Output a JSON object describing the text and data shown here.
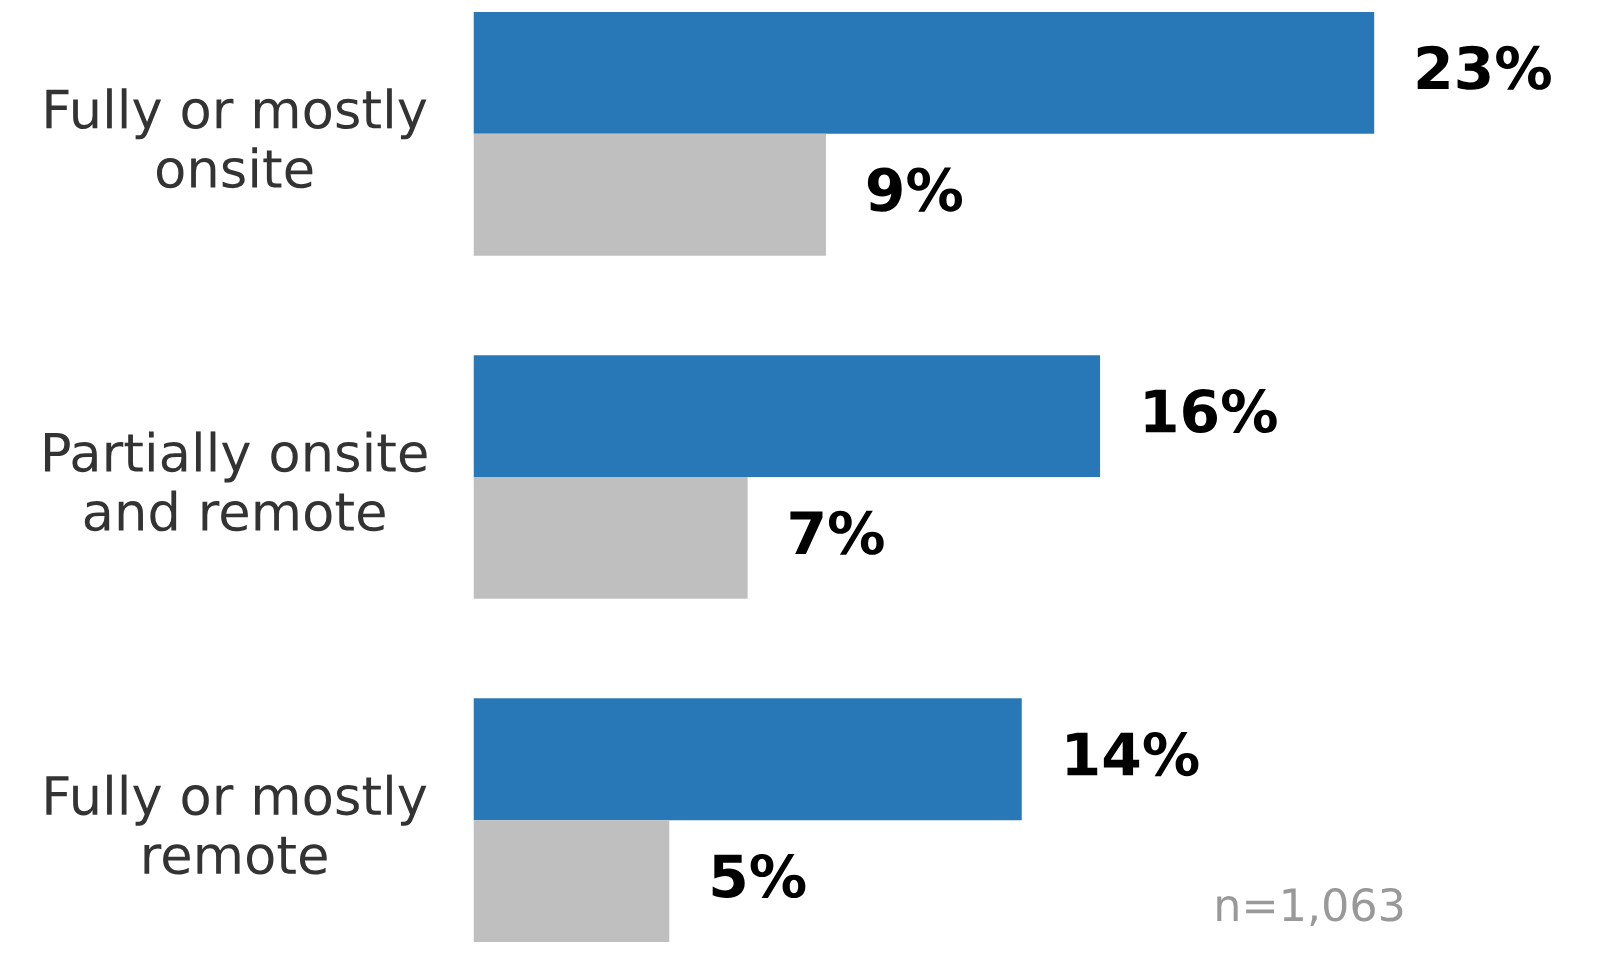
{
  "chart_data": {
    "type": "bar",
    "orientation": "horizontal",
    "categories": [
      "Fully or mostly\nonsite",
      "Partially onsite\nand remote",
      "Fully or mostly\nremote"
    ],
    "series": [
      {
        "color": "#2878b8",
        "values": [
          23,
          16,
          14
        ],
        "value_labels": [
          "23%",
          "16%",
          "14%"
        ]
      },
      {
        "color": "#bfbfbf",
        "values": [
          9,
          7,
          5
        ],
        "value_labels": [
          "9%",
          "7%",
          "5%"
        ]
      }
    ],
    "annotations": [
      "n=1,063"
    ],
    "grid": false,
    "legend": false,
    "tick_labels": "y"
  }
}
